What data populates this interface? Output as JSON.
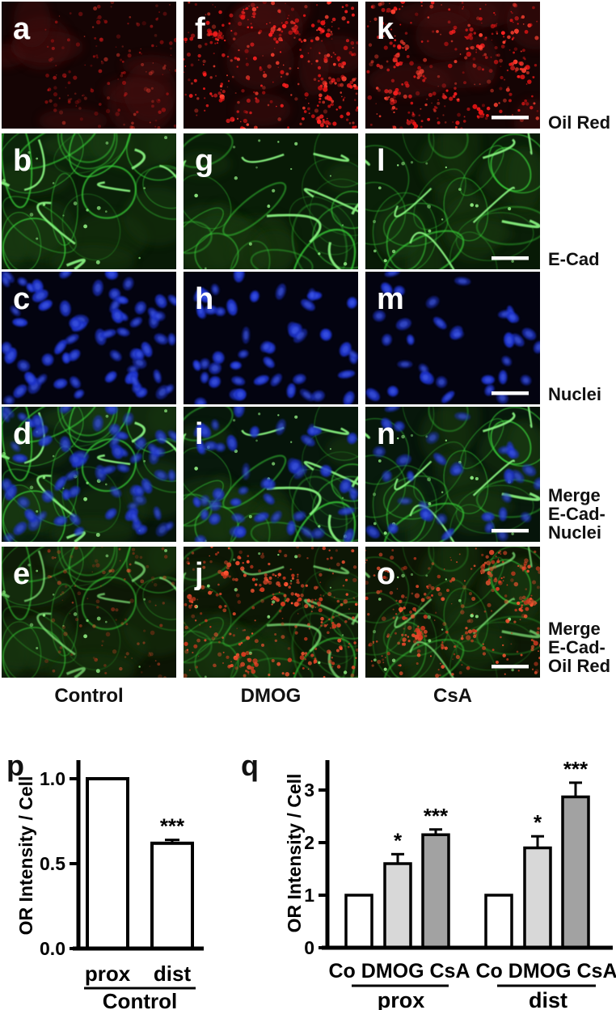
{
  "figure": {
    "rows": [
      {
        "label": "Oil Red",
        "stain": "oil",
        "panels": [
          "a",
          "f",
          "k"
        ]
      },
      {
        "label": "E-Cad",
        "stain": "ecad",
        "panels": [
          "b",
          "g",
          "l"
        ]
      },
      {
        "label": "Nuclei",
        "stain": "nuc",
        "panels": [
          "c",
          "h",
          "m"
        ]
      },
      {
        "label": "Merge\nE-Cad-\nNuclei",
        "stain": "men",
        "panels": [
          "d",
          "i",
          "n"
        ]
      },
      {
        "label": "Merge\nE-Cad-\nOil Red",
        "stain": "meo",
        "panels": [
          "e",
          "j",
          "o"
        ]
      }
    ],
    "columns": [
      "Control",
      "DMOG",
      "CsA"
    ],
    "colors": {
      "oil_red": "#ff2a1e",
      "ecad_green": "#3fd53f",
      "nuclei_blue": "#2a3fd4",
      "scale_bar": "#ffffff"
    }
  },
  "chart_data": [
    {
      "type": "bar",
      "panel_letter": "p",
      "ylabel": "OR Intensity / Cell",
      "yticks": [
        "0.0",
        "0.5",
        "1.0"
      ],
      "ylim": [
        0,
        1.1
      ],
      "categories": [
        "prox",
        "dist"
      ],
      "values": [
        1.0,
        0.62
      ],
      "errors": [
        0,
        0.02
      ],
      "annotations": [
        "",
        "***"
      ],
      "group_label": "Control",
      "bar_fills": [
        "#ffffff",
        "#ffffff"
      ],
      "bar_stroke": "#000000",
      "grid": "off",
      "legend": "none"
    },
    {
      "type": "bar",
      "panel_letter": "q",
      "ylabel": "OR Intensity / Cell",
      "yticks": [
        "0",
        "1",
        "2",
        "3"
      ],
      "ylim": [
        0,
        3.5
      ],
      "groups": [
        {
          "label": "prox",
          "categories": [
            "Co",
            "DMOG",
            "CsA"
          ],
          "values": [
            1.0,
            1.6,
            2.15
          ],
          "errors": [
            0,
            0.18,
            0.1
          ],
          "annotations": [
            "",
            "*",
            "***"
          ]
        },
        {
          "label": "dist",
          "categories": [
            "Co",
            "DMOG",
            "CsA"
          ],
          "values": [
            1.0,
            1.9,
            2.87
          ],
          "errors": [
            0,
            0.22,
            0.27
          ],
          "annotations": [
            "",
            "*",
            "***"
          ]
        }
      ],
      "bar_fills": [
        "#ffffff",
        "#d8d8d8",
        "#a2a2a2"
      ],
      "bar_stroke": "#000000",
      "grid": "off",
      "legend": "none"
    }
  ]
}
